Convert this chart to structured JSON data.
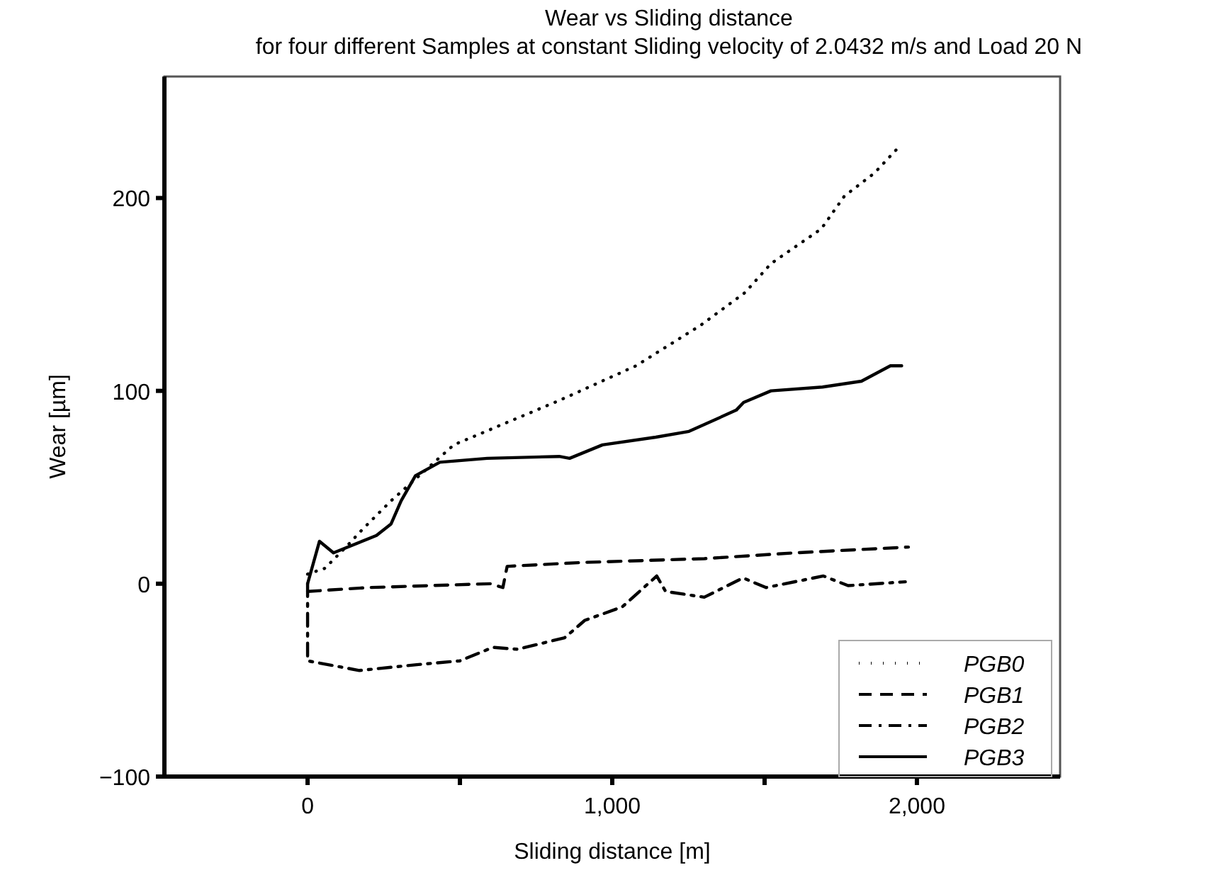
{
  "chart_data": {
    "type": "line",
    "title": "Wear vs Sliding distance",
    "subtitle": "for four different Samples at constant Sliding velocity of 2.0432 m/s and Load 20 N",
    "xlabel": "Sliding distance [m]",
    "ylabel": "Wear [µm]",
    "xlim": [
      -470,
      2470
    ],
    "ylim": [
      -100,
      263
    ],
    "xticks": [
      0,
      {
        "value": 500,
        "label": null
      },
      {
        "value": 1000,
        "label": "1,000"
      },
      {
        "value": 1500,
        "label": null
      },
      {
        "value": 2000,
        "label": "2,000"
      }
    ],
    "yticks": [
      {
        "value": -100,
        "label": "−100"
      },
      0,
      100,
      200
    ],
    "legend": "bottom right",
    "grid": false,
    "marker": "none",
    "series": [
      {
        "name": "PGB0",
        "color": "#000000",
        "line_style": "dotted",
        "x": [
          0,
          57,
          132,
          179,
          274,
          480,
          826,
          1078,
          1290,
          1436,
          1521,
          1686,
          1762,
          1861,
          1950
        ],
        "values": [
          5,
          8,
          20,
          28,
          43,
          72,
          95,
          113,
          134,
          151,
          166,
          184,
          201,
          213,
          228
        ]
      },
      {
        "name": "PGB1",
        "color": "#000000",
        "line_style": "dashed",
        "x": [
          0,
          200,
          400,
          600,
          641,
          655,
          900,
          1302,
          1600,
          1972
        ],
        "values": [
          -4,
          -2,
          -1,
          0,
          -2,
          9,
          11,
          13,
          16,
          19
        ]
      },
      {
        "name": "PGB2",
        "color": "#000000",
        "line_style": "dashdot",
        "x": [
          0,
          0,
          170,
          358,
          500,
          608,
          689,
          844,
          910,
          1033,
          1146,
          1175,
          1302,
          1429,
          1505,
          1693,
          1774,
          1962
        ],
        "values": [
          0,
          -40,
          -45,
          -42,
          -40,
          -33,
          -34,
          -28,
          -19,
          -12,
          4,
          -4,
          -7,
          3,
          -2,
          4,
          -1,
          1
        ]
      },
      {
        "name": "PGB3",
        "color": "#000000",
        "line_style": "solid",
        "x": [
          0,
          39,
          85,
          226,
          274,
          307,
          354,
          434,
          590,
          826,
          860,
          968,
          1143,
          1252,
          1407,
          1431,
          1521,
          1690,
          1818,
          1913,
          1950
        ],
        "values": [
          0,
          22,
          16,
          25,
          31,
          43,
          56,
          63,
          65,
          66,
          65,
          72,
          76,
          79,
          90,
          94,
          100,
          102,
          105,
          113,
          113
        ]
      }
    ]
  }
}
